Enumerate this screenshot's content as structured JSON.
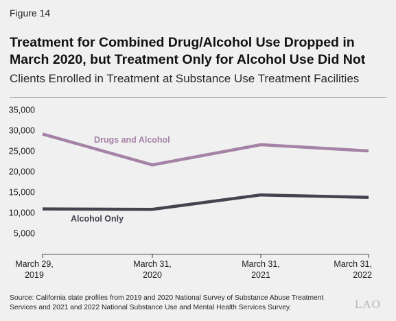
{
  "figure_label": "Figure 14",
  "title": "Treatment for Combined Drug/Alcohol Use Dropped in March 2020, but Treatment Only for Alcohol Use Did Not",
  "subtitle": "Clients Enrolled in Treatment at Substance Use Treatment Facilities",
  "source": "Source: California state profiles from 2019 and 2020 National Survey of Substance Abuse Treatment Services and 2021 and 2022 National Substance Use and Mental Health Services Survey.",
  "logo_text": "LAO",
  "colors": {
    "drugs_and_alcohol": "#a583a6",
    "alcohol_only": "#47424f",
    "axis": "#444444",
    "text": "#1a1a1a"
  },
  "chart_data": {
    "type": "line",
    "x": [
      [
        "March 29,",
        "2019"
      ],
      [
        "March 31,",
        "2020"
      ],
      [
        "March 31,",
        "2021"
      ],
      [
        "March 31,",
        "2022"
      ]
    ],
    "ylim": [
      0,
      35000
    ],
    "yticks": [
      "5,000",
      "10,000",
      "15,000",
      "20,000",
      "25,000",
      "30,000",
      "35,000"
    ],
    "ytick_values": [
      5000,
      10000,
      15000,
      20000,
      25000,
      30000,
      35000
    ],
    "series": [
      {
        "name": "Drugs and Alcohol",
        "values": [
          29100,
          21600,
          26500,
          25000
        ],
        "color": "#a583a6"
      },
      {
        "name": "Alcohol Only",
        "values": [
          10900,
          10800,
          14300,
          13700
        ],
        "color": "#47424f"
      }
    ],
    "grid": false
  }
}
